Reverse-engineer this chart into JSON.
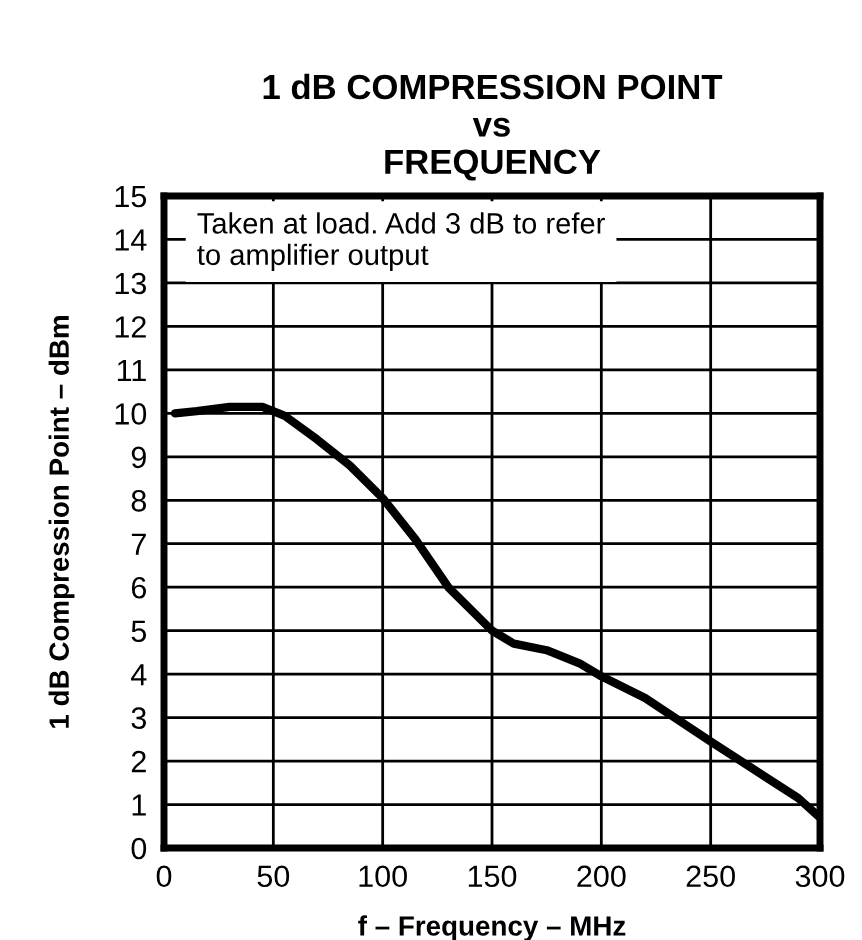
{
  "chart_data": {
    "type": "line",
    "title": "1 dB COMPRESSION POINT\nvs\nFREQUENCY",
    "xlabel": "f – Frequency – MHz",
    "ylabel": "1 dB Compression Point – dBm",
    "annotations": [
      "Taken at load. Add 3 dB to refer\nto amplifier output"
    ],
    "x": [
      5,
      15,
      30,
      45,
      55,
      70,
      85,
      100,
      115,
      130,
      150,
      160,
      175,
      190,
      200,
      220,
      250,
      270,
      290,
      300
    ],
    "series": [
      {
        "color": "#000000",
        "values": [
          10.0,
          10.05,
          10.15,
          10.15,
          9.95,
          9.4,
          8.8,
          8.05,
          7.1,
          6.0,
          5.0,
          4.7,
          4.55,
          4.25,
          3.95,
          3.45,
          2.45,
          1.8,
          1.15,
          0.7
        ]
      }
    ],
    "xlim": [
      0,
      300
    ],
    "xticks": [
      0,
      50,
      100,
      150,
      200,
      250,
      300
    ],
    "ylim": [
      0,
      15
    ],
    "yticks": [
      0,
      1,
      2,
      3,
      4,
      5,
      6,
      7,
      8,
      9,
      10,
      11,
      12,
      13,
      14,
      15
    ],
    "grid": true,
    "legend": false,
    "marker": "none",
    "line_style": "solid"
  }
}
